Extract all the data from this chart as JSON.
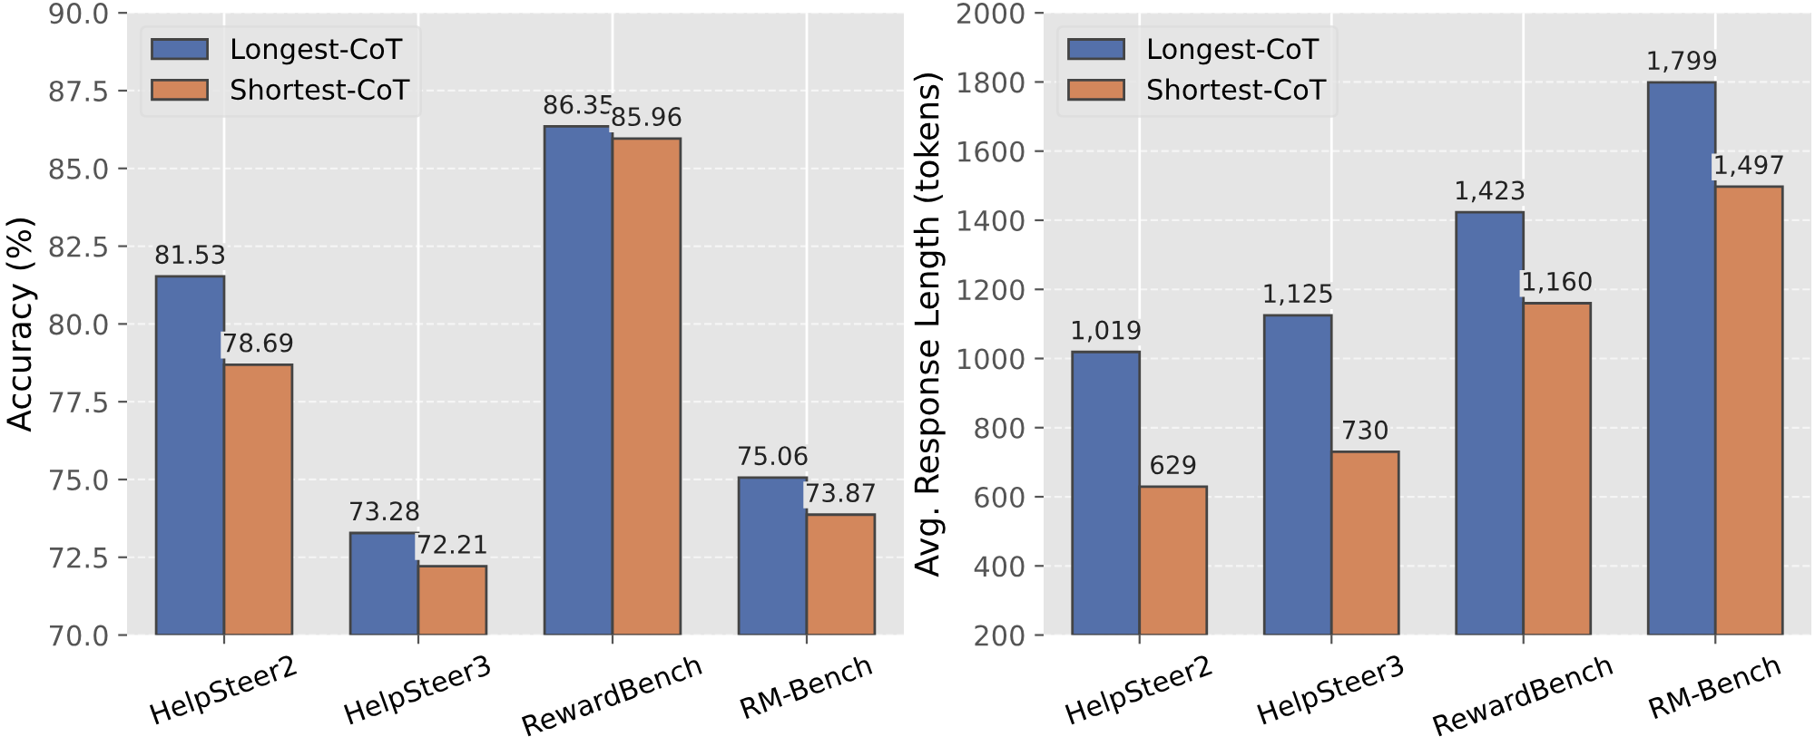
{
  "chart_data": [
    {
      "type": "bar",
      "ylabel": "Accuracy (%)",
      "categories": [
        "HelpSteer2",
        "HelpSteer3",
        "RewardBench",
        "RM-Bench"
      ],
      "series": [
        {
          "name": "Longest-CoT",
          "color": "#5470aa",
          "values": [
            81.53,
            73.28,
            86.35,
            75.06
          ]
        },
        {
          "name": "Shortest-CoT",
          "color": "#d3875c",
          "values": [
            78.69,
            72.21,
            85.96,
            73.87
          ]
        }
      ],
      "ylim": [
        70,
        90
      ],
      "yticks": [
        {
          "value": 70,
          "label": "70.0"
        },
        72.5,
        {
          "value": 75,
          "label": "75.0"
        },
        77.5,
        {
          "value": 80,
          "label": "80.0"
        },
        82.5,
        {
          "value": 85,
          "label": "85.0"
        },
        87.5,
        {
          "value": 90,
          "label": "90.0"
        }
      ],
      "grid": true,
      "legend": "top left",
      "data_labels": true
    },
    {
      "type": "bar",
      "ylabel": "Avg. Response Length (tokens)",
      "categories": [
        "HelpSteer2",
        "HelpSteer3",
        "RewardBench",
        "RM-Bench"
      ],
      "series": [
        {
          "name": "Longest-CoT",
          "color": "#5470aa",
          "values": [
            1019,
            1125,
            1423,
            1799
          ],
          "value_labels": [
            "1,019",
            "1,125",
            "1,423",
            "1,799"
          ]
        },
        {
          "name": "Shortest-CoT",
          "color": "#d3875c",
          "values": [
            629,
            730,
            1160,
            1497
          ],
          "value_labels": [
            "629",
            "730",
            "1,160",
            "1,497"
          ]
        }
      ],
      "ylim": [
        200,
        2000
      ],
      "yticks": [
        200,
        400,
        600,
        800,
        1000,
        1200,
        1400,
        1600,
        1800,
        2000
      ],
      "grid": true,
      "legend": "top left"
    }
  ]
}
